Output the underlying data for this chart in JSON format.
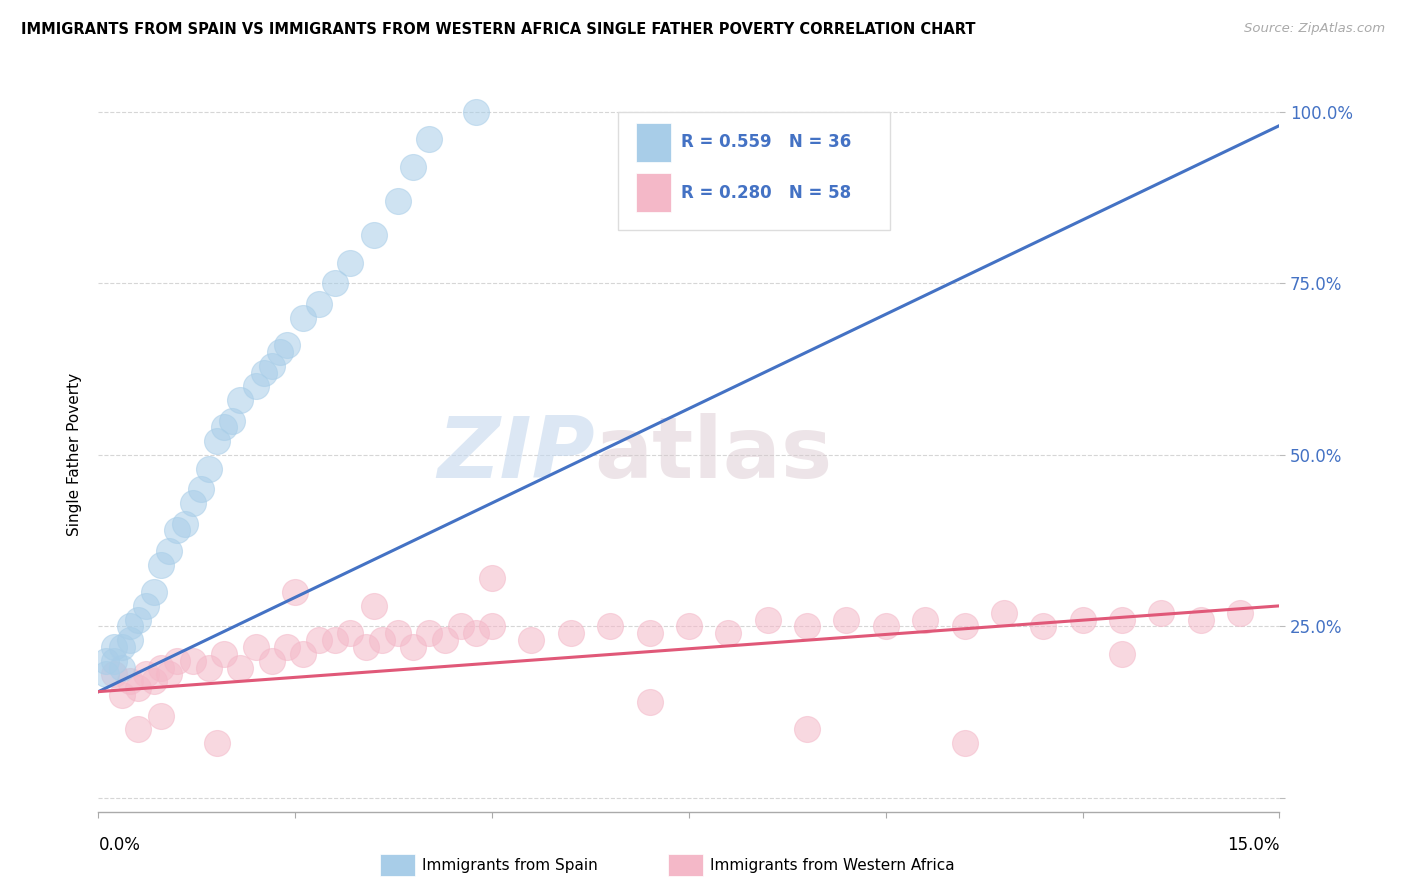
{
  "title": "IMMIGRANTS FROM SPAIN VS IMMIGRANTS FROM WESTERN AFRICA SINGLE FATHER POVERTY CORRELATION CHART",
  "source": "Source: ZipAtlas.com",
  "ylabel": "Single Father Poverty",
  "ytick_labels": [
    "",
    "25.0%",
    "50.0%",
    "75.0%",
    "100.0%"
  ],
  "ytick_vals": [
    0.0,
    0.25,
    0.5,
    0.75,
    1.0
  ],
  "legend_blue_r": "R = 0.559",
  "legend_blue_n": "N = 36",
  "legend_pink_r": "R = 0.280",
  "legend_pink_n": "N = 58",
  "legend_label_blue": "Immigrants from Spain",
  "legend_label_pink": "Immigrants from Western Africa",
  "watermark_zip": "ZIP",
  "watermark_atlas": "atlas",
  "blue_color": "#a8cde8",
  "pink_color": "#f4b8c8",
  "blue_line_color": "#4472c4",
  "pink_line_color": "#e05878",
  "background": "#ffffff",
  "xlim": [
    0.0,
    0.15
  ],
  "ylim": [
    -0.02,
    1.02
  ],
  "blue_scatter_x": [
    0.001,
    0.001,
    0.002,
    0.002,
    0.003,
    0.003,
    0.004,
    0.004,
    0.005,
    0.006,
    0.007,
    0.008,
    0.009,
    0.01,
    0.011,
    0.012,
    0.013,
    0.014,
    0.015,
    0.016,
    0.017,
    0.018,
    0.02,
    0.021,
    0.022,
    0.023,
    0.024,
    0.026,
    0.028,
    0.03,
    0.032,
    0.035,
    0.038,
    0.04,
    0.042,
    0.048
  ],
  "blue_scatter_y": [
    0.18,
    0.2,
    0.2,
    0.22,
    0.19,
    0.22,
    0.23,
    0.25,
    0.26,
    0.28,
    0.3,
    0.34,
    0.36,
    0.39,
    0.4,
    0.43,
    0.45,
    0.48,
    0.52,
    0.54,
    0.55,
    0.58,
    0.6,
    0.62,
    0.63,
    0.65,
    0.66,
    0.7,
    0.72,
    0.75,
    0.78,
    0.82,
    0.87,
    0.92,
    0.96,
    1.0
  ],
  "pink_scatter_x": [
    0.002,
    0.003,
    0.004,
    0.005,
    0.006,
    0.007,
    0.008,
    0.009,
    0.01,
    0.012,
    0.014,
    0.016,
    0.018,
    0.02,
    0.022,
    0.024,
    0.026,
    0.028,
    0.03,
    0.032,
    0.034,
    0.036,
    0.038,
    0.04,
    0.042,
    0.044,
    0.046,
    0.048,
    0.05,
    0.055,
    0.06,
    0.065,
    0.07,
    0.075,
    0.08,
    0.085,
    0.09,
    0.095,
    0.1,
    0.105,
    0.11,
    0.115,
    0.12,
    0.125,
    0.13,
    0.135,
    0.14,
    0.145,
    0.005,
    0.008,
    0.015,
    0.025,
    0.035,
    0.05,
    0.07,
    0.09,
    0.11,
    0.13
  ],
  "pink_scatter_y": [
    0.18,
    0.15,
    0.17,
    0.16,
    0.18,
    0.17,
    0.19,
    0.18,
    0.2,
    0.2,
    0.19,
    0.21,
    0.19,
    0.22,
    0.2,
    0.22,
    0.21,
    0.23,
    0.23,
    0.24,
    0.22,
    0.23,
    0.24,
    0.22,
    0.24,
    0.23,
    0.25,
    0.24,
    0.25,
    0.23,
    0.24,
    0.25,
    0.24,
    0.25,
    0.24,
    0.26,
    0.25,
    0.26,
    0.25,
    0.26,
    0.25,
    0.27,
    0.25,
    0.26,
    0.26,
    0.27,
    0.26,
    0.27,
    0.1,
    0.12,
    0.08,
    0.3,
    0.28,
    0.32,
    0.14,
    0.1,
    0.08,
    0.21
  ],
  "blue_line_x": [
    0.0,
    0.15
  ],
  "blue_line_y": [
    0.155,
    0.98
  ],
  "pink_line_x": [
    0.0,
    0.15
  ],
  "pink_line_y": [
    0.155,
    0.28
  ]
}
